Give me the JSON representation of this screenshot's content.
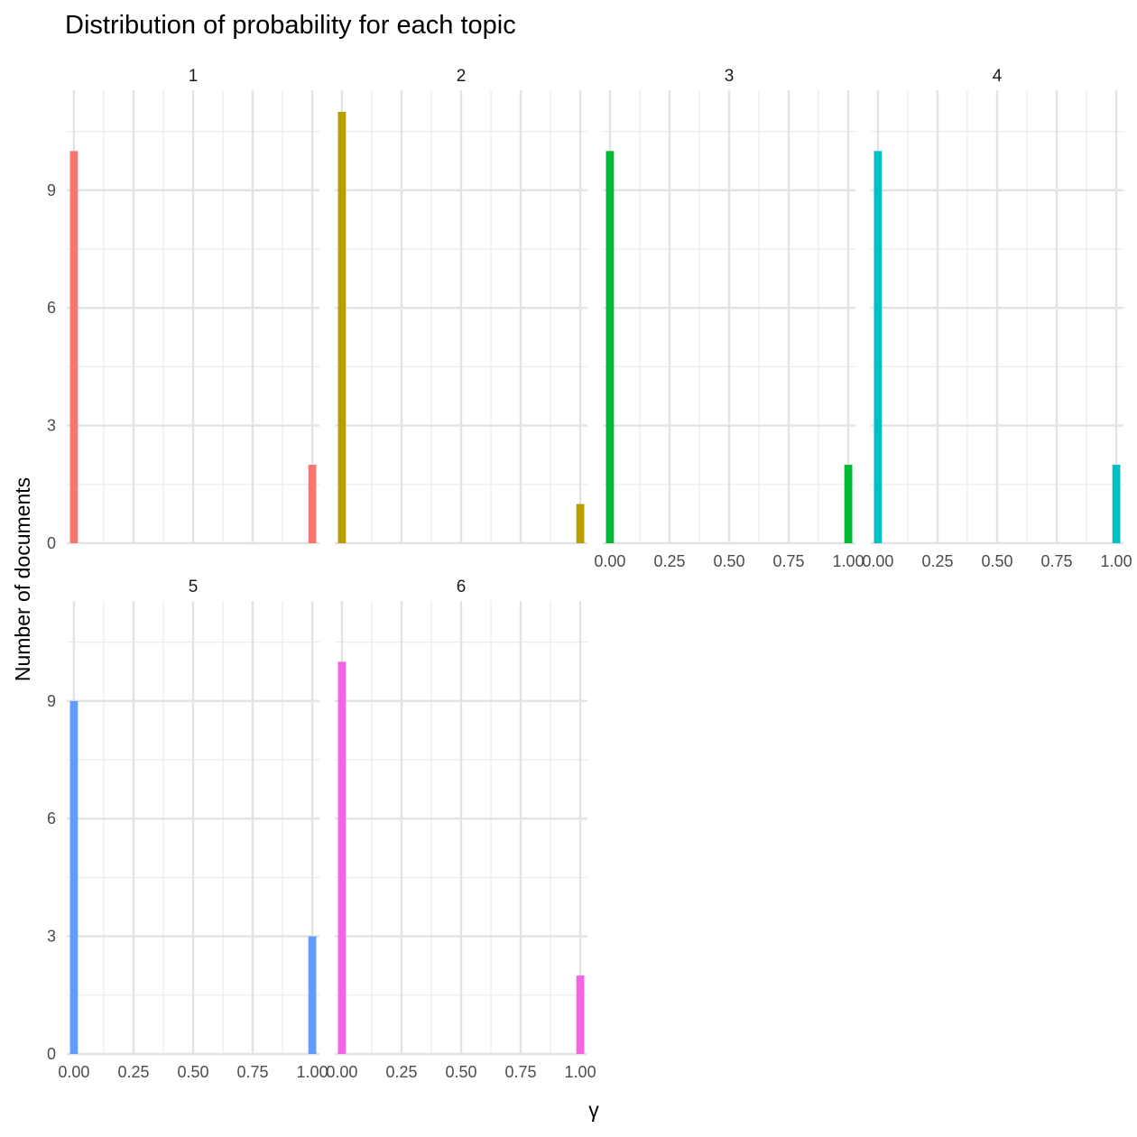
{
  "chart_data": {
    "type": "bar",
    "title": "Distribution of probability for each topic",
    "xlabel": "γ",
    "ylabel": "Number of documents",
    "xlim": [
      -0.03,
      1.03
    ],
    "ylim": [
      0,
      11.55
    ],
    "x_ticks": [
      0,
      0.25,
      0.5,
      0.75,
      1
    ],
    "x_tick_labels": [
      "0.00",
      "0.25",
      "0.50",
      "0.75",
      "1.00"
    ],
    "y_ticks": [
      0,
      3,
      6,
      9
    ],
    "y_tick_labels": [
      "0",
      "3",
      "6",
      "9"
    ],
    "bin_width": 0.0333,
    "grid": true,
    "panels": [
      {
        "label": "1",
        "color": "#F8766D",
        "bars": [
          {
            "x": 0.0,
            "count": 10
          },
          {
            "x": 1.0,
            "count": 2
          }
        ]
      },
      {
        "label": "2",
        "color": "#B79F00",
        "bars": [
          {
            "x": 0.0,
            "count": 11
          },
          {
            "x": 1.0,
            "count": 1
          }
        ]
      },
      {
        "label": "3",
        "color": "#00BA38",
        "bars": [
          {
            "x": 0.0,
            "count": 10
          },
          {
            "x": 1.0,
            "count": 2
          }
        ]
      },
      {
        "label": "4",
        "color": "#00BFC4",
        "bars": [
          {
            "x": 0.0,
            "count": 10
          },
          {
            "x": 1.0,
            "count": 2
          }
        ]
      },
      {
        "label": "5",
        "color": "#619CFF",
        "bars": [
          {
            "x": 0.0,
            "count": 9
          },
          {
            "x": 1.0,
            "count": 3
          }
        ]
      },
      {
        "label": "6",
        "color": "#F564E3",
        "bars": [
          {
            "x": 0.0,
            "count": 10
          },
          {
            "x": 1.0,
            "count": 2
          }
        ]
      }
    ]
  }
}
